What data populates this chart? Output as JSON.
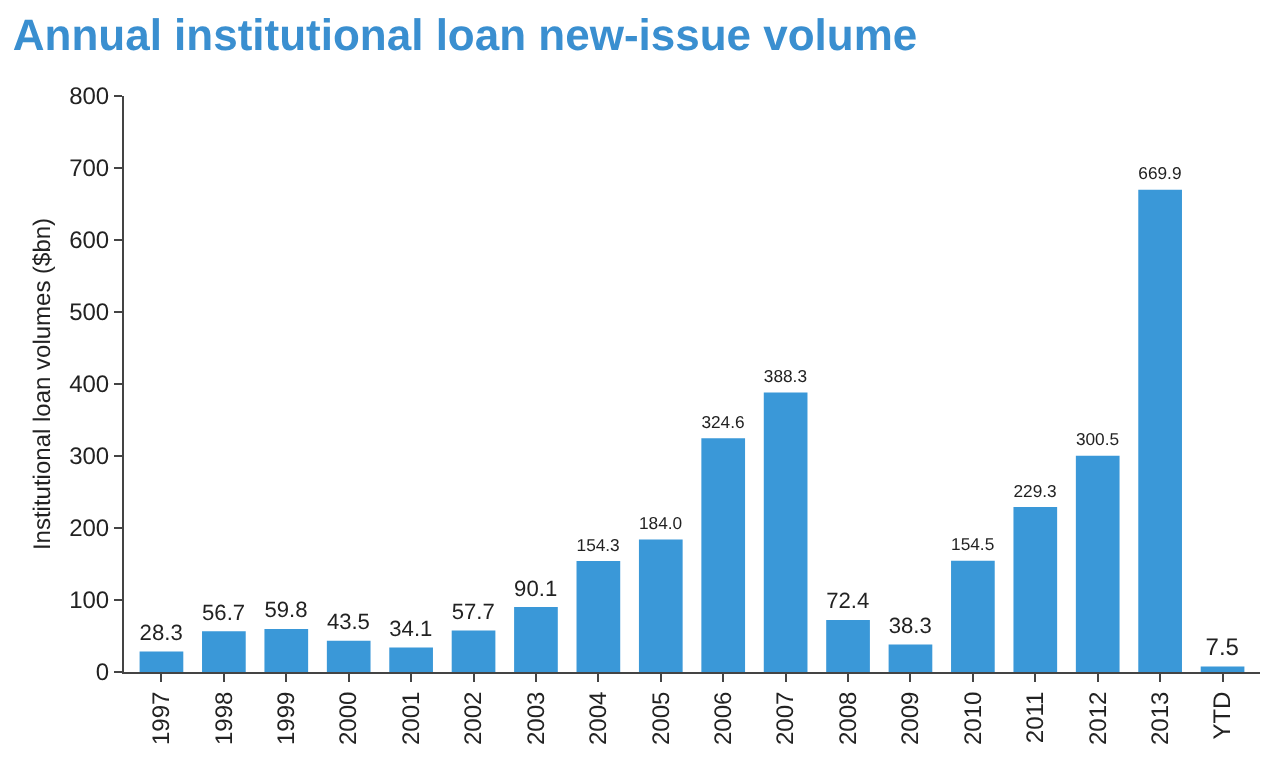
{
  "chart_data": {
    "type": "bar",
    "title": "Annual institutional loan new-issue volume",
    "ylabel": "Institutional loan volumes ($bn)",
    "categories": [
      "1997",
      "1998",
      "1999",
      "2000",
      "2001",
      "2002",
      "2003",
      "2004",
      "2005",
      "2006",
      "2007",
      "2008",
      "2009",
      "2010",
      "2011",
      "2012",
      "2013",
      "YTD"
    ],
    "values": [
      28.3,
      56.7,
      59.8,
      43.5,
      34.1,
      57.7,
      90.1,
      154.3,
      184.0,
      324.6,
      388.3,
      72.4,
      38.3,
      154.5,
      229.3,
      300.5,
      669.9,
      7.5
    ],
    "value_labels": [
      "28.3",
      "56.7",
      "59.8",
      "43.5",
      "34.1",
      "57.7",
      "90.1",
      "154.3",
      "184.0",
      "324.6",
      "388.3",
      "72.4",
      "38.3",
      "154.5",
      "229.3",
      "300.5",
      "669.9",
      "7.5"
    ],
    "color": "#3a98d8",
    "ylim": [
      0,
      800
    ],
    "yticks": [
      0,
      100,
      200,
      300,
      400,
      500,
      600,
      700,
      800
    ],
    "grid": false
  }
}
